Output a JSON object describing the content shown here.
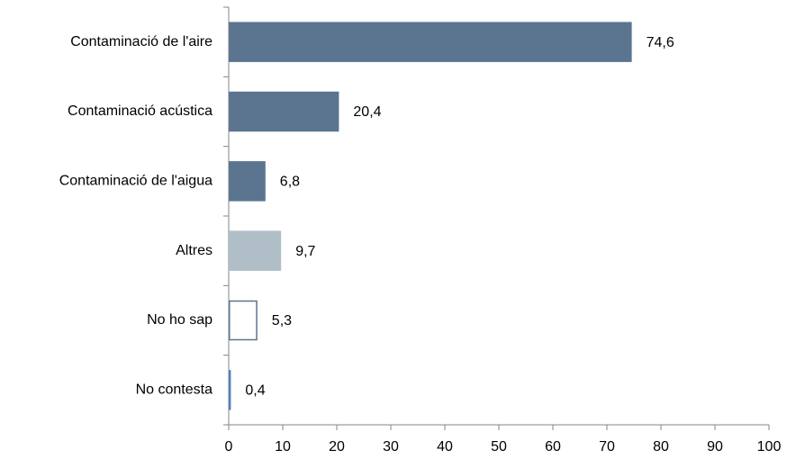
{
  "chart_data": {
    "type": "barh",
    "categories": [
      "Contaminació de l'aire",
      "Contaminació acústica",
      "Contaminació de l'aigua",
      "Altres",
      "No ho sap",
      "No contesta"
    ],
    "values": [
      74.6,
      20.4,
      6.8,
      9.7,
      5.3,
      0.4
    ],
    "value_labels": [
      "74,6",
      "20,4",
      "6,8",
      "9,7",
      "5,3",
      "0,4"
    ],
    "colors": [
      "#5b7590",
      "#5b7590",
      "#5b7590",
      "#b0bec8",
      "#ffffff",
      "#ffffff"
    ],
    "edgecolors": [
      "#5b7590",
      "#5b7590",
      "#5b7590",
      "#b0bec8",
      "#5b7590",
      "#4f81bd"
    ],
    "xlim": [
      0,
      100
    ],
    "xticks": [
      0,
      10,
      20,
      30,
      40,
      50,
      60,
      70,
      80,
      90,
      100
    ],
    "grid": false
  }
}
